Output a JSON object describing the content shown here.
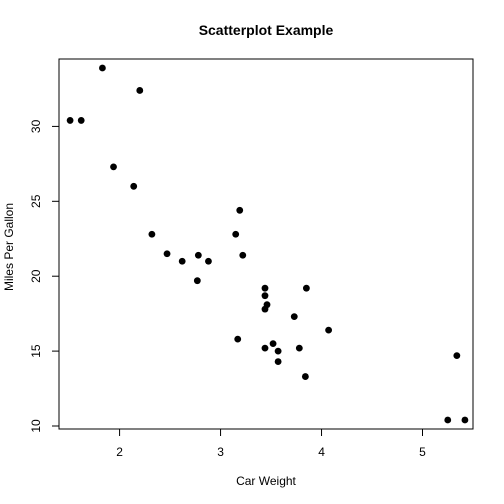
{
  "chart_data": {
    "type": "scatter",
    "title": "Scatterplot Example",
    "xlabel": "Car Weight",
    "ylabel": "Miles Per Gallon",
    "xlim": [
      1.4,
      5.5
    ],
    "ylim": [
      9.8,
      34.5
    ],
    "xticks": [
      2,
      3,
      4,
      5
    ],
    "yticks": [
      10,
      15,
      20,
      25,
      30
    ],
    "grid": false,
    "marker_color": "#000000",
    "points": [
      {
        "x": 1.51,
        "y": 30.4
      },
      {
        "x": 1.62,
        "y": 30.4
      },
      {
        "x": 1.83,
        "y": 33.9
      },
      {
        "x": 1.94,
        "y": 27.3
      },
      {
        "x": 2.14,
        "y": 26.0
      },
      {
        "x": 2.2,
        "y": 32.4
      },
      {
        "x": 2.32,
        "y": 22.8
      },
      {
        "x": 2.47,
        "y": 21.5
      },
      {
        "x": 2.62,
        "y": 21.0
      },
      {
        "x": 2.77,
        "y": 19.7
      },
      {
        "x": 2.78,
        "y": 21.4
      },
      {
        "x": 2.88,
        "y": 21.0
      },
      {
        "x": 3.15,
        "y": 22.8
      },
      {
        "x": 3.17,
        "y": 15.8
      },
      {
        "x": 3.19,
        "y": 24.4
      },
      {
        "x": 3.22,
        "y": 21.4
      },
      {
        "x": 3.44,
        "y": 17.8
      },
      {
        "x": 3.44,
        "y": 18.7
      },
      {
        "x": 3.44,
        "y": 19.2
      },
      {
        "x": 3.44,
        "y": 15.2
      },
      {
        "x": 3.46,
        "y": 18.1
      },
      {
        "x": 3.52,
        "y": 15.5
      },
      {
        "x": 3.57,
        "y": 15.0
      },
      {
        "x": 3.57,
        "y": 14.3
      },
      {
        "x": 3.73,
        "y": 17.3
      },
      {
        "x": 3.78,
        "y": 15.2
      },
      {
        "x": 3.84,
        "y": 13.3
      },
      {
        "x": 3.85,
        "y": 19.2
      },
      {
        "x": 4.07,
        "y": 16.4
      },
      {
        "x": 5.25,
        "y": 10.4
      },
      {
        "x": 5.34,
        "y": 14.7
      },
      {
        "x": 5.42,
        "y": 10.4
      }
    ]
  }
}
